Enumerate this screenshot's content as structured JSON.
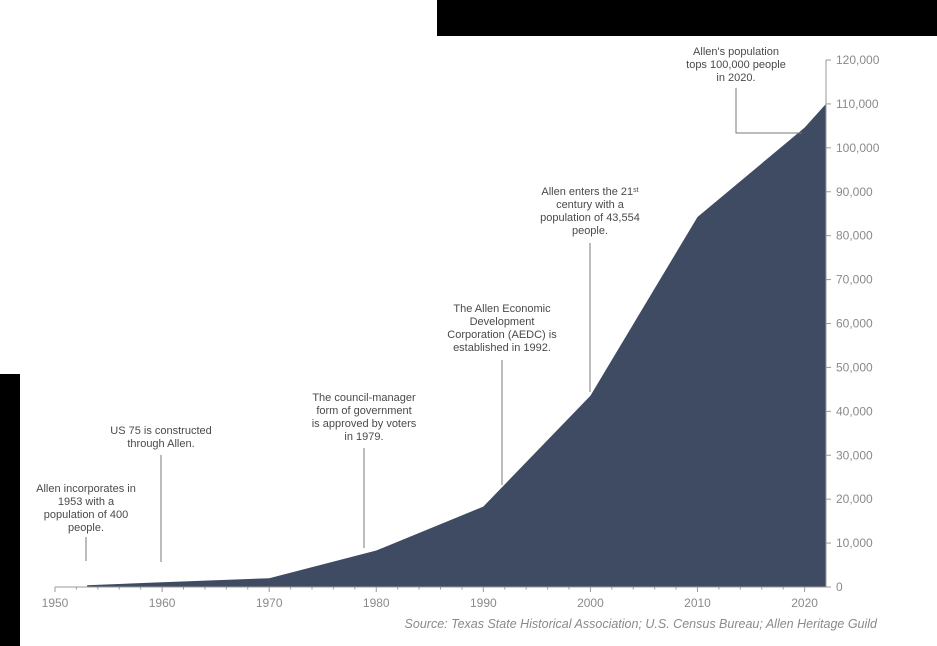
{
  "chart_data": {
    "type": "area",
    "x": [
      1953,
      1960,
      1970,
      1980,
      1990,
      2000,
      2010,
      2020,
      2022
    ],
    "values": [
      400,
      1100,
      2000,
      8300,
      18300,
      43554,
      84250,
      104600,
      110000
    ],
    "xlim": [
      1950,
      2022
    ],
    "ylim": [
      0,
      120000
    ],
    "x_ticks": [
      1950,
      1960,
      1970,
      1980,
      1990,
      2000,
      2010,
      2020
    ],
    "y_ticks": [
      0,
      10000,
      20000,
      30000,
      40000,
      50000,
      60000,
      70000,
      80000,
      90000,
      100000,
      110000,
      120000
    ],
    "x_tick_labels": [
      "1950",
      "1960",
      "1970",
      "1980",
      "1990",
      "2000",
      "2010",
      "2020"
    ],
    "y_tick_labels": [
      "0",
      "10,000",
      "20,000",
      "30,000",
      "40,000",
      "50,000",
      "60,000",
      "70,000",
      "80,000",
      "90,000",
      "100,000",
      "110,000",
      "120,000"
    ],
    "y_axis_position": "right",
    "grid": false,
    "legend": "none",
    "fill_color": "#3e4b62",
    "annotations": [
      {
        "year": 1953,
        "lines": [
          "Allen incorporates in",
          "1953 with a",
          "population of 400",
          "people."
        ]
      },
      {
        "year": 1960,
        "lines": [
          "US 75 is constructed",
          "through Allen."
        ]
      },
      {
        "year": 1979,
        "lines": [
          "The council-manager",
          "form of government",
          "is approved by voters",
          "in 1979."
        ]
      },
      {
        "year": 1992,
        "lines": [
          "The Allen Economic",
          "Development",
          "Corporation (AEDC) is",
          "established in 1992."
        ]
      },
      {
        "year": 2000,
        "lines": [
          "Allen enters the 21st",
          "century with a",
          "population of 43,554",
          "people."
        ]
      },
      {
        "year": 2020,
        "lines": [
          "Allen's population",
          "tops 100,000 people",
          "in 2020."
        ]
      }
    ],
    "source": "Source: Texas State Historical Association; U.S. Census Bureau; Allen Heritage Guild"
  },
  "colors": {
    "area": "#3e4b62",
    "axis": "#9a9a9a",
    "text": "#4a4a4a",
    "tick_text": "#8a8a8a",
    "redaction": "#000000"
  }
}
